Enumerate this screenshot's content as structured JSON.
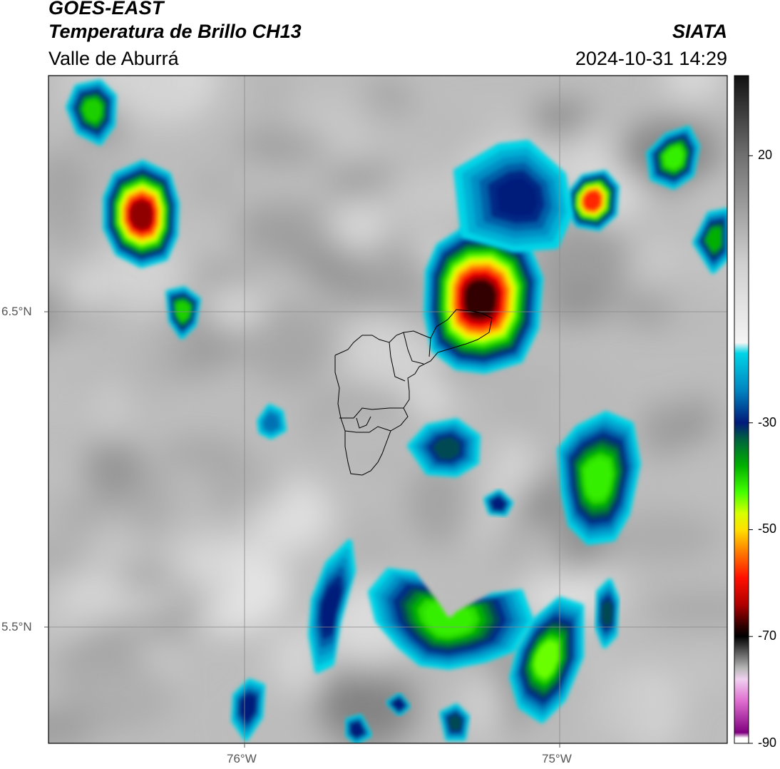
{
  "header": {
    "satellite": "GOES-EAST",
    "product": "Temperatura de Brillo CH13",
    "region": "Valle de Aburrá",
    "agency": "SIATA",
    "datetime": "2024-10-31 14:29"
  },
  "axes": {
    "lat_labels": [
      "6.5°N",
      "5.5°N"
    ],
    "lon_labels": [
      "76°W",
      "75°W"
    ]
  },
  "colorbar": {
    "ticks": [
      "20",
      "-30",
      "-50",
      "-70",
      "-90"
    ],
    "range": [
      -90,
      35
    ],
    "stops": [
      {
        "v": 35,
        "c": "#111111"
      },
      {
        "v": 20,
        "c": "#707070"
      },
      {
        "v": 0,
        "c": "#cfcfcf"
      },
      {
        "v": -15,
        "c": "#f4f4f4"
      },
      {
        "v": -17,
        "c": "#00d4e6"
      },
      {
        "v": -24,
        "c": "#0083c0"
      },
      {
        "v": -30,
        "c": "#001a7a"
      },
      {
        "v": -33,
        "c": "#006040"
      },
      {
        "v": -38,
        "c": "#00b000"
      },
      {
        "v": -43,
        "c": "#44ff00"
      },
      {
        "v": -47,
        "c": "#d8ff00"
      },
      {
        "v": -50,
        "c": "#ffe000"
      },
      {
        "v": -54,
        "c": "#ff8000"
      },
      {
        "v": -59,
        "c": "#ff1000"
      },
      {
        "v": -64,
        "c": "#b00000"
      },
      {
        "v": -68,
        "c": "#300000"
      },
      {
        "v": -70,
        "c": "#000000"
      },
      {
        "v": -76,
        "c": "#b8b8b8"
      },
      {
        "v": -78,
        "c": "#f0d0f0"
      },
      {
        "v": -82,
        "c": "#e070d0"
      },
      {
        "v": -88,
        "c": "#800080"
      },
      {
        "v": -89,
        "c": "#ffffff"
      },
      {
        "v": -90,
        "c": "#ffffff"
      }
    ]
  },
  "storms": [
    {
      "name": "nw-core",
      "ring": [
        [
          148,
          277
        ],
        [
          162,
          245
        ],
        [
          200,
          228
        ],
        [
          236,
          245
        ],
        [
          248,
          285
        ],
        [
          246,
          330
        ],
        [
          232,
          362
        ],
        [
          198,
          372
        ],
        [
          165,
          355
        ],
        [
          148,
          320
        ]
      ],
      "peak": -65
    },
    {
      "name": "nw-top",
      "ring": [
        [
          96,
          150
        ],
        [
          108,
          122
        ],
        [
          140,
          115
        ],
        [
          160,
          135
        ],
        [
          158,
          175
        ],
        [
          140,
          200
        ],
        [
          110,
          185
        ]
      ],
      "peak": -40
    },
    {
      "name": "nw-small",
      "ring": [
        [
          236,
          410
        ],
        [
          258,
          405
        ],
        [
          278,
          420
        ],
        [
          272,
          455
        ],
        [
          255,
          472
        ],
        [
          240,
          450
        ]
      ],
      "peak": -40
    },
    {
      "name": "center-core",
      "ring": [
        [
          600,
          380
        ],
        [
          615,
          345
        ],
        [
          650,
          322
        ],
        [
          700,
          320
        ],
        [
          740,
          345
        ],
        [
          758,
          390
        ],
        [
          752,
          460
        ],
        [
          730,
          505
        ],
        [
          680,
          520
        ],
        [
          640,
          515
        ],
        [
          608,
          490
        ],
        [
          598,
          440
        ]
      ],
      "peak": -68
    },
    {
      "name": "ne-core",
      "ring": [
        [
          800,
          270
        ],
        [
          818,
          248
        ],
        [
          848,
          242
        ],
        [
          865,
          262
        ],
        [
          862,
          300
        ],
        [
          840,
          320
        ],
        [
          810,
          315
        ],
        [
          798,
          295
        ]
      ],
      "peak": -58
    },
    {
      "name": "ne-top",
      "ring": [
        [
          910,
          215
        ],
        [
          935,
          190
        ],
        [
          965,
          180
        ],
        [
          978,
          205
        ],
        [
          970,
          245
        ],
        [
          945,
          262
        ],
        [
          915,
          250
        ]
      ],
      "peak": -42
    },
    {
      "name": "ne-edge",
      "ring": [
        [
          975,
          340
        ],
        [
          995,
          300
        ],
        [
          1020,
          295
        ],
        [
          1020,
          360
        ],
        [
          1000,
          380
        ]
      ],
      "peak": -38
    },
    {
      "name": "upper-band",
      "ring": [
        [
          640,
          240
        ],
        [
          700,
          205
        ],
        [
          740,
          200
        ],
        [
          790,
          245
        ],
        [
          800,
          300
        ],
        [
          780,
          345
        ],
        [
          720,
          350
        ],
        [
          650,
          330
        ]
      ],
      "peak": -30
    },
    {
      "name": "e-long",
      "ring": [
        [
          785,
          630
        ],
        [
          810,
          600
        ],
        [
          850,
          580
        ],
        [
          885,
          595
        ],
        [
          895,
          650
        ],
        [
          880,
          720
        ],
        [
          860,
          755
        ],
        [
          825,
          760
        ],
        [
          800,
          735
        ],
        [
          790,
          690
        ]
      ],
      "peak": -42
    },
    {
      "name": "mid-spot",
      "ring": [
        [
          575,
          625
        ],
        [
          600,
          598
        ],
        [
          640,
          590
        ],
        [
          670,
          612
        ],
        [
          668,
          648
        ],
        [
          640,
          665
        ],
        [
          600,
          662
        ]
      ],
      "peak": -32
    },
    {
      "name": "mid-tiny",
      "ring": [
        [
          682,
          700
        ],
        [
          700,
          690
        ],
        [
          716,
          705
        ],
        [
          708,
          720
        ],
        [
          688,
          718
        ]
      ],
      "peak": -30
    },
    {
      "name": "s-band",
      "ring": [
        [
          520,
          830
        ],
        [
          545,
          800
        ],
        [
          580,
          805
        ],
        [
          600,
          840
        ],
        [
          630,
          880
        ],
        [
          665,
          860
        ],
        [
          690,
          835
        ],
        [
          730,
          830
        ],
        [
          745,
          870
        ],
        [
          720,
          910
        ],
        [
          680,
          925
        ],
        [
          630,
          935
        ],
        [
          590,
          930
        ],
        [
          560,
          905
        ],
        [
          530,
          870
        ]
      ],
      "peak": -42
    },
    {
      "name": "s-east",
      "ring": [
        [
          728,
          910
        ],
        [
          750,
          870
        ],
        [
          785,
          840
        ],
        [
          815,
          850
        ],
        [
          815,
          920
        ],
        [
          790,
          980
        ],
        [
          760,
          1010
        ],
        [
          730,
          990
        ],
        [
          718,
          950
        ]
      ],
      "peak": -44
    },
    {
      "name": "s-west",
      "ring": [
        [
          440,
          840
        ],
        [
          460,
          790
        ],
        [
          490,
          760
        ],
        [
          495,
          800
        ],
        [
          475,
          870
        ],
        [
          465,
          930
        ],
        [
          445,
          940
        ],
        [
          436,
          890
        ]
      ],
      "peak": -30
    },
    {
      "name": "se-spot",
      "ring": [
        [
          840,
          830
        ],
        [
          855,
          815
        ],
        [
          865,
          840
        ],
        [
          862,
          890
        ],
        [
          848,
          905
        ],
        [
          838,
          880
        ]
      ],
      "peak": -32
    },
    {
      "name": "sw-spot",
      "ring": [
        [
          330,
          975
        ],
        [
          350,
          955
        ],
        [
          368,
          962
        ],
        [
          365,
          1005
        ],
        [
          345,
          1035
        ],
        [
          328,
          1010
        ]
      ],
      "peak": -30
    },
    {
      "name": "bottom-a",
      "ring": [
        [
          545,
          985
        ],
        [
          560,
          975
        ],
        [
          572,
          990
        ],
        [
          560,
          1000
        ]
      ],
      "peak": -30
    },
    {
      "name": "bottom-b",
      "ring": [
        [
          620,
          1000
        ],
        [
          640,
          990
        ],
        [
          655,
          1005
        ],
        [
          650,
          1035
        ],
        [
          628,
          1035
        ]
      ],
      "peak": -32
    },
    {
      "name": "bottom-c",
      "ring": [
        [
          488,
          1010
        ],
        [
          505,
          1005
        ],
        [
          518,
          1030
        ],
        [
          500,
          1040
        ],
        [
          488,
          1030
        ]
      ],
      "peak": -30
    },
    {
      "name": "mid-left",
      "ring": [
        [
          364,
          590
        ],
        [
          378,
          570
        ],
        [
          394,
          578
        ],
        [
          398,
          602
        ],
        [
          380,
          612
        ],
        [
          366,
          605
        ]
      ],
      "peak": -25
    }
  ],
  "aburra_border": [
    [
      [
        470,
        498
      ],
      [
        488,
        490
      ],
      [
        496,
        480
      ],
      [
        508,
        470
      ],
      [
        522,
        470
      ],
      [
        532,
        476
      ],
      [
        546,
        480
      ],
      [
        556,
        470
      ],
      [
        566,
        466
      ],
      [
        580,
        464
      ],
      [
        594,
        470
      ],
      [
        604,
        474
      ],
      [
        612,
        458
      ],
      [
        628,
        448
      ],
      [
        640,
        434
      ],
      [
        660,
        436
      ],
      [
        674,
        438
      ],
      [
        690,
        446
      ],
      [
        686,
        466
      ],
      [
        670,
        476
      ],
      [
        654,
        482
      ],
      [
        634,
        488
      ],
      [
        614,
        494
      ],
      [
        604,
        506
      ],
      [
        588,
        514
      ],
      [
        582,
        524
      ],
      [
        572,
        530
      ],
      [
        574,
        548
      ],
      [
        574,
        560
      ],
      [
        566,
        572
      ],
      [
        572,
        584
      ],
      [
        562,
        596
      ],
      [
        548,
        604
      ],
      [
        542,
        620
      ],
      [
        536,
        636
      ],
      [
        530,
        648
      ],
      [
        520,
        660
      ],
      [
        508,
        666
      ],
      [
        492,
        664
      ],
      [
        488,
        648
      ],
      [
        484,
        626
      ],
      [
        484,
        604
      ],
      [
        478,
        586
      ],
      [
        474,
        566
      ],
      [
        476,
        544
      ],
      [
        470,
        522
      ],
      [
        470,
        498
      ]
    ],
    [
      [
        546,
        480
      ],
      [
        548,
        500
      ],
      [
        554,
        528
      ],
      [
        568,
        534
      ]
    ],
    [
      [
        566,
        466
      ],
      [
        572,
        490
      ],
      [
        578,
        506
      ],
      [
        594,
        510
      ]
    ],
    [
      [
        604,
        474
      ],
      [
        602,
        500
      ]
    ],
    [
      [
        476,
        586
      ],
      [
        496,
        586
      ],
      [
        508,
        572
      ],
      [
        522,
        574
      ],
      [
        546,
        572
      ],
      [
        566,
        572
      ]
    ],
    [
      [
        484,
        604
      ],
      [
        500,
        606
      ],
      [
        518,
        606
      ],
      [
        530,
        598
      ],
      [
        548,
        604
      ]
    ],
    [
      [
        500,
        586
      ],
      [
        504,
        600
      ],
      [
        514,
        596
      ],
      [
        520,
        584
      ]
    ]
  ]
}
